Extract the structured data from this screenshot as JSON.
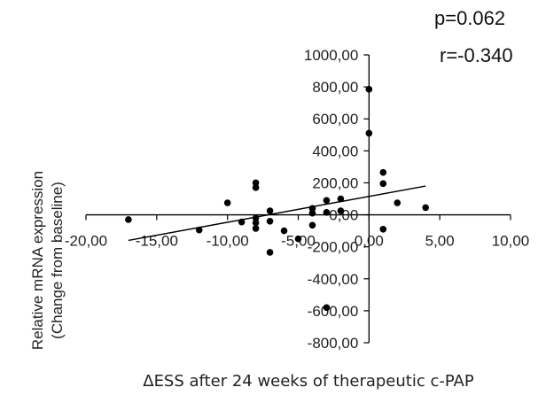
{
  "annotations": {
    "p_value": "p=0.062",
    "r_value": "r=-0.340"
  },
  "chart_data": {
    "type": "scatter",
    "title": "",
    "xlabel": "ΔESS after 24 weeks of therapeutic c-PAP",
    "ylabel": [
      "Relative mRNA expression",
      "(Change from baseline)"
    ],
    "xlim": [
      -20,
      10
    ],
    "ylim": [
      -800,
      1000
    ],
    "x_ticks": [
      -20,
      -15,
      -10,
      -5,
      0,
      5,
      10
    ],
    "x_tick_labels": [
      "-20,00",
      "-15,00",
      "-10,00",
      "-5,00",
      "0,00",
      "5,00",
      "10,00"
    ],
    "y_ticks": [
      -800,
      -600,
      -400,
      -200,
      0,
      200,
      400,
      600,
      800,
      1000
    ],
    "y_tick_labels": [
      "-800,00",
      "-600,00",
      "-400,00",
      "-200,00",
      "0,00",
      "200,00",
      "400,00",
      "600,00",
      "800,00",
      "1000,00"
    ],
    "grid": false,
    "legend": "none",
    "marker_color": "#000000",
    "points": [
      {
        "x": -17,
        "y": -30
      },
      {
        "x": -12,
        "y": -95
      },
      {
        "x": -10,
        "y": 75
      },
      {
        "x": -9,
        "y": -45
      },
      {
        "x": -8,
        "y": 200
      },
      {
        "x": -8,
        "y": 170
      },
      {
        "x": -8,
        "y": -20
      },
      {
        "x": -8,
        "y": -50
      },
      {
        "x": -8,
        "y": -85
      },
      {
        "x": -7,
        "y": 25
      },
      {
        "x": -7,
        "y": -40
      },
      {
        "x": -7,
        "y": -235
      },
      {
        "x": -6,
        "y": -100
      },
      {
        "x": -5,
        "y": -150
      },
      {
        "x": -4,
        "y": 40
      },
      {
        "x": -4,
        "y": 10
      },
      {
        "x": -4,
        "y": -65
      },
      {
        "x": -3,
        "y": 90
      },
      {
        "x": -3,
        "y": 15
      },
      {
        "x": -3,
        "y": -580
      },
      {
        "x": -2,
        "y": 100
      },
      {
        "x": -2,
        "y": 25
      },
      {
        "x": 0,
        "y": 785
      },
      {
        "x": 0,
        "y": 510
      },
      {
        "x": 1,
        "y": 265
      },
      {
        "x": 1,
        "y": 195
      },
      {
        "x": 1,
        "y": -90
      },
      {
        "x": 2,
        "y": 75
      },
      {
        "x": 4,
        "y": 45
      }
    ],
    "trendline": {
      "x": [
        -17,
        4
      ],
      "y": [
        -160,
        180
      ]
    }
  }
}
